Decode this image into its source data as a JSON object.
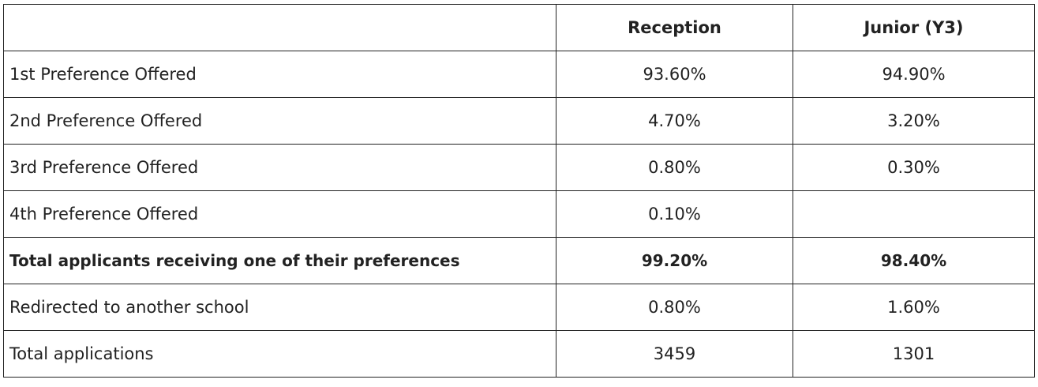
{
  "table": {
    "columns": [
      "Reception",
      "Junior (Y3)"
    ],
    "rows": [
      {
        "label": "1st Preference Offered",
        "cells": [
          "93.60%",
          "94.90%"
        ]
      },
      {
        "label": "2nd Preference Offered",
        "cells": [
          "4.70%",
          "3.20%"
        ]
      },
      {
        "label": "3rd Preference Offered",
        "cells": [
          "0.80%",
          "0.30%"
        ]
      },
      {
        "label": "4th Preference Offered",
        "cells": [
          "0.10%"
        ]
      },
      {
        "label": "Total applicants receiving one of their preferences",
        "cells": [
          "99.20%",
          "98.40%"
        ],
        "bold": true
      },
      {
        "label": "Redirected to another school",
        "cells": [
          "0.80%",
          "1.60%"
        ]
      },
      {
        "label": "Total applications",
        "cells": [
          "3459",
          "1301"
        ]
      }
    ]
  }
}
